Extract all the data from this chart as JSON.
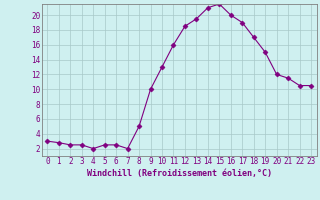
{
  "x": [
    0,
    1,
    2,
    3,
    4,
    5,
    6,
    7,
    8,
    9,
    10,
    11,
    12,
    13,
    14,
    15,
    16,
    17,
    18,
    19,
    20,
    21,
    22,
    23
  ],
  "y": [
    3.0,
    2.8,
    2.5,
    2.5,
    2.0,
    2.5,
    2.5,
    2.0,
    5.0,
    10.0,
    13.0,
    16.0,
    18.5,
    19.5,
    21.0,
    21.5,
    20.0,
    19.0,
    17.0,
    15.0,
    12.0,
    11.5,
    10.5,
    10.5
  ],
  "line_color": "#800080",
  "marker": "D",
  "marker_size": 2.5,
  "bg_color": "#cff0f0",
  "grid_color": "#a8c8c8",
  "xlabel": "Windchill (Refroidissement éolien,°C)",
  "yticks": [
    2,
    4,
    6,
    8,
    10,
    12,
    14,
    16,
    18,
    20
  ],
  "ylim": [
    1.0,
    21.5
  ],
  "xlim": [
    -0.5,
    23.5
  ],
  "tick_color": "#800080",
  "label_color": "#800080",
  "axis_color": "#808080",
  "xlabel_fontsize": 6.0,
  "tick_fontsize": 5.5
}
